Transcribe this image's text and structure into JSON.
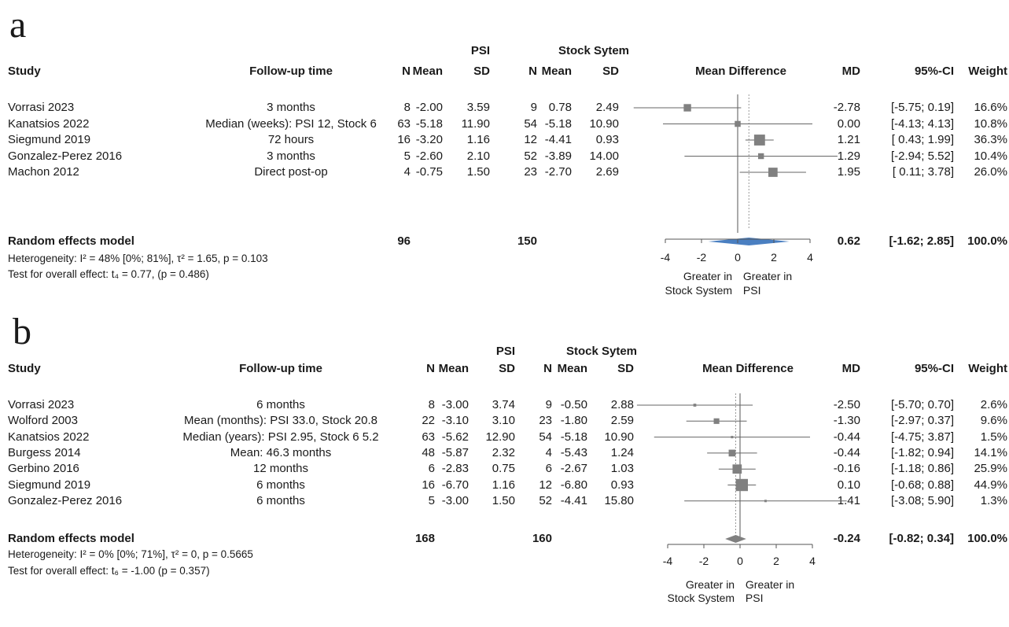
{
  "panels": [
    {
      "letter": "a",
      "group_labels": {
        "psi": "PSI",
        "stock": "Stock Sytem"
      },
      "headers": {
        "study": "Study",
        "follow": "Follow-up time",
        "n": "N",
        "mean": "Mean",
        "sd": "SD",
        "plot": "Mean Difference",
        "md": "MD",
        "ci": "95%-CI",
        "weight": "Weight"
      },
      "rows": [
        {
          "study": "Vorrasi 2023",
          "follow": "3 months",
          "n1": "8",
          "mean1": "-2.00",
          "sd1": "3.59",
          "n2": "9",
          "mean2": "0.78",
          "sd2": "2.49",
          "md": "-2.78",
          "ci": "[-5.75; 0.19]",
          "weight": "16.6%"
        },
        {
          "study": "Kanatsios 2022",
          "follow": "Median (weeks): PSI 12, Stock 6",
          "n1": "63",
          "mean1": "-5.18",
          "sd1": "11.90",
          "n2": "54",
          "mean2": "-5.18",
          "sd2": "10.90",
          "md": "0.00",
          "ci": "[-4.13; 4.13]",
          "weight": "10.8%"
        },
        {
          "study": "Siegmund 2019",
          "follow": "72 hours",
          "n1": "16",
          "mean1": "-3.20",
          "sd1": "1.16",
          "n2": "12",
          "mean2": "-4.41",
          "sd2": "0.93",
          "md": "1.21",
          "ci": "[ 0.43; 1.99]",
          "weight": "36.3%"
        },
        {
          "study": "Gonzalez-Perez 2016",
          "follow": "3 months",
          "n1": "5",
          "mean1": "-2.60",
          "sd1": "2.10",
          "n2": "52",
          "mean2": "-3.89",
          "sd2": "14.00",
          "md": "1.29",
          "ci": "[-2.94; 5.52]",
          "weight": "10.4%"
        },
        {
          "study": "Machon 2012",
          "follow": "Direct post-op",
          "n1": "4",
          "mean1": "-0.75",
          "sd1": "1.50",
          "n2": "23",
          "mean2": "-2.70",
          "sd2": "2.69",
          "md": "1.95",
          "ci": "[ 0.11; 3.78]",
          "weight": "26.0%"
        }
      ],
      "summary": {
        "label": "Random effects model",
        "n1": "96",
        "n2": "150",
        "md": "0.62",
        "ci": "[-1.62; 2.85]",
        "weight": "100.0%"
      },
      "heterogeneity": "Heterogeneity: I² = 48% [0%; 81%], τ² = 1.65, p = 0.103",
      "overall_test": "Test for overall effect: t₄ = 0.77, (p = 0.486)",
      "axis_ticks": [
        "-4",
        "-2",
        "0",
        "2",
        "4"
      ],
      "favours_left": [
        "Greater in",
        "Stock System"
      ],
      "favours_right": [
        "Greater in",
        "PSI"
      ]
    },
    {
      "letter": "b",
      "group_labels": {
        "psi": "PSI",
        "stock": "Stock Sytem"
      },
      "headers": {
        "study": "Study",
        "follow": "Follow-up time",
        "n": "N",
        "mean": "Mean",
        "sd": "SD",
        "plot": "Mean Difference",
        "md": "MD",
        "ci": "95%-CI",
        "weight": "Weight"
      },
      "rows": [
        {
          "study": "Vorrasi 2023",
          "follow": "6 months",
          "n1": "8",
          "mean1": "-3.00",
          "sd1": "3.74",
          "n2": "9",
          "mean2": "-0.50",
          "sd2": "2.88",
          "md": "-2.50",
          "ci": "[-5.70; 0.70]",
          "weight": "2.6%"
        },
        {
          "study": "Wolford 2003",
          "follow": "Mean (months): PSI 33.0, Stock 20.8",
          "n1": "22",
          "mean1": "-3.10",
          "sd1": "3.10",
          "n2": "23",
          "mean2": "-1.80",
          "sd2": "2.59",
          "md": "-1.30",
          "ci": "[-2.97; 0.37]",
          "weight": "9.6%"
        },
        {
          "study": "Kanatsios 2022",
          "follow": "Median (years): PSI 2.95, Stock 6 5.2",
          "n1": "63",
          "mean1": "-5.62",
          "sd1": "12.90",
          "n2": "54",
          "mean2": "-5.18",
          "sd2": "10.90",
          "md": "-0.44",
          "ci": "[-4.75; 3.87]",
          "weight": "1.5%"
        },
        {
          "study": "Burgess 2014",
          "follow": "Mean: 46.3 months",
          "n1": "48",
          "mean1": "-5.87",
          "sd1": "2.32",
          "n2": "4",
          "mean2": "-5.43",
          "sd2": "1.24",
          "md": "-0.44",
          "ci": "[-1.82; 0.94]",
          "weight": "14.1%"
        },
        {
          "study": "Gerbino 2016",
          "follow": "12 months",
          "n1": "6",
          "mean1": "-2.83",
          "sd1": "0.75",
          "n2": "6",
          "mean2": "-2.67",
          "sd2": "1.03",
          "md": "-0.16",
          "ci": "[-1.18; 0.86]",
          "weight": "25.9%"
        },
        {
          "study": "Siegmund 2019",
          "follow": "6 months",
          "n1": "16",
          "mean1": "-6.70",
          "sd1": "1.16",
          "n2": "12",
          "mean2": "-6.80",
          "sd2": "0.93",
          "md": "0.10",
          "ci": "[-0.68; 0.88]",
          "weight": "44.9%"
        },
        {
          "study": "Gonzalez-Perez 2016",
          "follow": "6 months",
          "n1": "5",
          "mean1": "-3.00",
          "sd1": "1.50",
          "n2": "52",
          "mean2": "-4.41",
          "sd2": "15.80",
          "md": "1.41",
          "ci": "[-3.08; 5.90]",
          "weight": "1.3%"
        }
      ],
      "summary": {
        "label": "Random effects model",
        "n1": "168",
        "n2": "160",
        "md": "-0.24",
        "ci": "[-0.82; 0.34]",
        "weight": "100.0%"
      },
      "heterogeneity": "Heterogeneity: I² = 0% [0%; 71%], τ² = 0, p = 0.5665",
      "overall_test": "Test for overall effect: t₆ = -1.00 (p = 0.357)",
      "axis_ticks": [
        "-4",
        "-2",
        "0",
        "2",
        "4"
      ],
      "favours_left": [
        "Greater in",
        "Stock System"
      ],
      "favours_right": [
        "Greater in",
        "PSI"
      ]
    }
  ],
  "chart_data": [
    {
      "type": "forest",
      "xlabel": "Mean Difference",
      "xlim": [
        -4,
        4
      ],
      "xticks": [
        -4,
        -2,
        0,
        2,
        4
      ],
      "colors": {
        "point": "#808080",
        "diamond": "#4a7fc1",
        "line": "#555555"
      },
      "studies": [
        {
          "name": "Vorrasi 2023",
          "md": -2.78,
          "lower": -5.75,
          "upper": 0.19,
          "weight": 16.6
        },
        {
          "name": "Kanatsios 2022",
          "md": 0.0,
          "lower": -4.13,
          "upper": 4.13,
          "weight": 10.8
        },
        {
          "name": "Siegmund 2019",
          "md": 1.21,
          "lower": 0.43,
          "upper": 1.99,
          "weight": 36.3
        },
        {
          "name": "Gonzalez-Perez 2016",
          "md": 1.29,
          "lower": -2.94,
          "upper": 5.52,
          "weight": 10.4
        },
        {
          "name": "Machon 2012",
          "md": 1.95,
          "lower": 0.11,
          "upper": 3.78,
          "weight": 26.0
        }
      ],
      "pooled": {
        "md": 0.62,
        "lower": -1.62,
        "upper": 2.85
      }
    },
    {
      "type": "forest",
      "xlabel": "Mean Difference",
      "xlim": [
        -4,
        4
      ],
      "xticks": [
        -4,
        -2,
        0,
        2,
        4
      ],
      "colors": {
        "point": "#808080",
        "diamond": "#808080",
        "line": "#555555"
      },
      "studies": [
        {
          "name": "Vorrasi 2023",
          "md": -2.5,
          "lower": -5.7,
          "upper": 0.7,
          "weight": 2.6
        },
        {
          "name": "Wolford 2003",
          "md": -1.3,
          "lower": -2.97,
          "upper": 0.37,
          "weight": 9.6
        },
        {
          "name": "Kanatsios 2022",
          "md": -0.44,
          "lower": -4.75,
          "upper": 3.87,
          "weight": 1.5
        },
        {
          "name": "Burgess 2014",
          "md": -0.44,
          "lower": -1.82,
          "upper": 0.94,
          "weight": 14.1
        },
        {
          "name": "Gerbino 2016",
          "md": -0.16,
          "lower": -1.18,
          "upper": 0.86,
          "weight": 25.9
        },
        {
          "name": "Siegmund 2019",
          "md": 0.1,
          "lower": -0.68,
          "upper": 0.88,
          "weight": 44.9
        },
        {
          "name": "Gonzalez-Perez 2016",
          "md": 1.41,
          "lower": -3.08,
          "upper": 5.9,
          "weight": 1.3
        }
      ],
      "pooled": {
        "md": -0.24,
        "lower": -0.82,
        "upper": 0.34
      }
    }
  ]
}
